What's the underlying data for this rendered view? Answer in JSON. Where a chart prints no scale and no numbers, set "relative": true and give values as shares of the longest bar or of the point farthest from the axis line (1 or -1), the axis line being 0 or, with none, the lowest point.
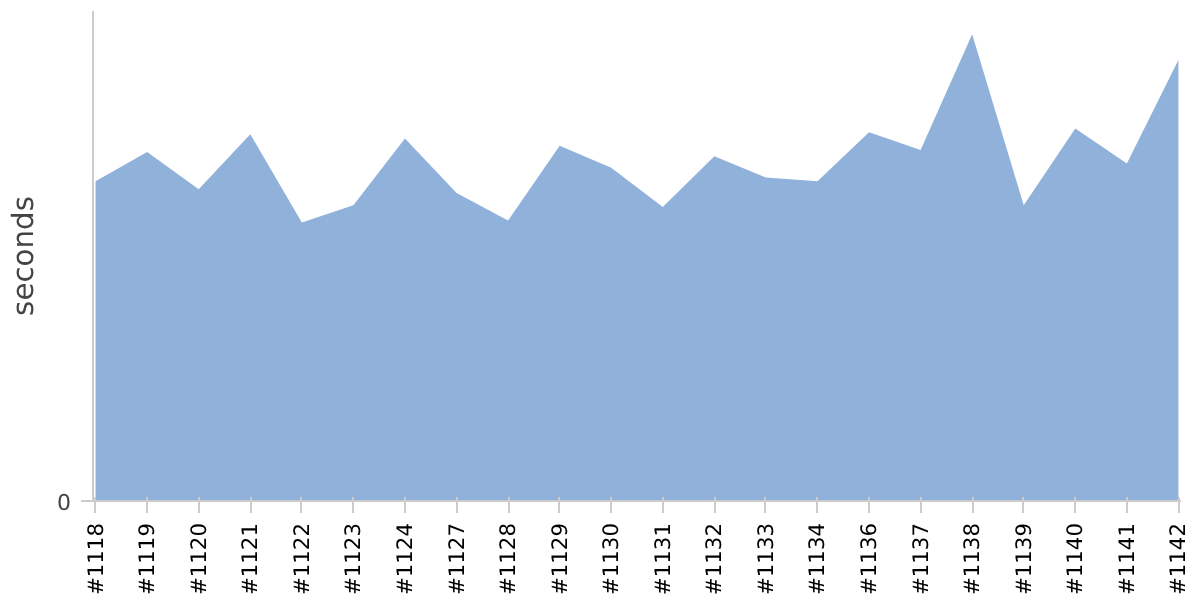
{
  "chart_data": {
    "type": "area",
    "ylabel": "seconds",
    "relative": true,
    "annotations": [
      "0"
    ],
    "grid": false,
    "categories": [
      "#1118",
      "#1119",
      "#1120",
      "#1121",
      "#1122",
      "#1123",
      "#1124",
      "#1127",
      "#1128",
      "#1129",
      "#1130",
      "#1131",
      "#1132",
      "#1133",
      "#1134",
      "#1136",
      "#1137",
      "#1138",
      "#1139",
      "#1140",
      "#1141",
      "#1142"
    ],
    "color": "#8fb1da",
    "values": [
      0.685,
      0.748,
      0.668,
      0.786,
      0.597,
      0.634,
      0.777,
      0.66,
      0.601,
      0.761,
      0.714,
      0.63,
      0.739,
      0.693,
      0.685,
      0.79,
      0.752,
      1,
      0.634,
      0.798,
      0.723,
      0.945
    ]
  }
}
